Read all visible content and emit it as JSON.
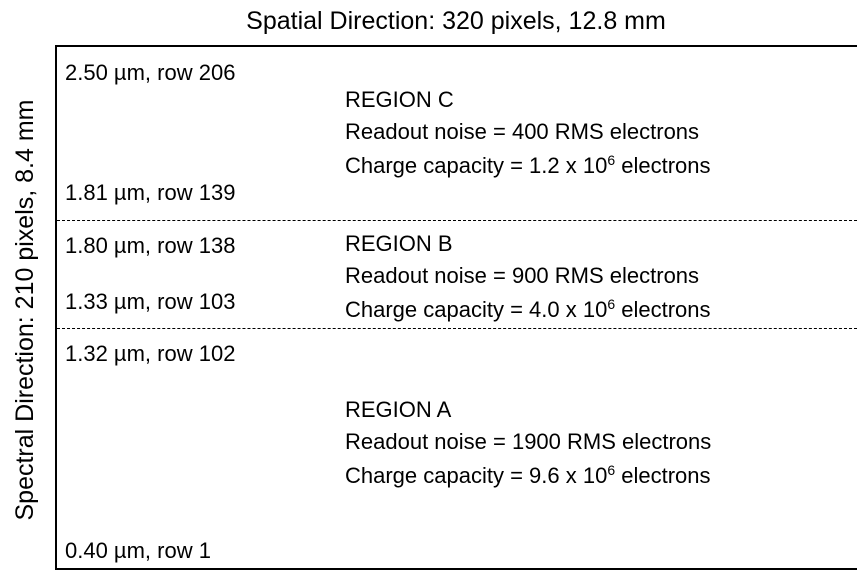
{
  "title": "Spatial Direction: 320 pixels, 12.8 mm",
  "side_label": "Spectral Direction: 210 pixels, 8.4 mm",
  "row_labels": [
    "2.50 µm, row 206",
    "1.81 µm, row 139",
    "1.80 µm, row 138",
    "1.33 µm, row 103",
    "1.32 µm, row 102",
    "0.40 µm, row 1"
  ],
  "regions": [
    {
      "name": "REGION C",
      "noise": "Readout noise = 400 RMS electrons",
      "capacity": {
        "prefix": "Charge capacity = 1.2 x 10",
        "exponent": "6",
        "suffix": " electrons"
      }
    },
    {
      "name": "REGION B",
      "noise": "Readout noise = 900 RMS electrons",
      "capacity": {
        "prefix": "Charge capacity = 4.0 x 10",
        "exponent": "6",
        "suffix": " electrons"
      }
    },
    {
      "name": "REGION A",
      "noise": "Readout noise = 1900 RMS electrons",
      "capacity": {
        "prefix": "Charge capacity = 9.6 x 10",
        "exponent": "6",
        "suffix": " electrons"
      }
    }
  ]
}
